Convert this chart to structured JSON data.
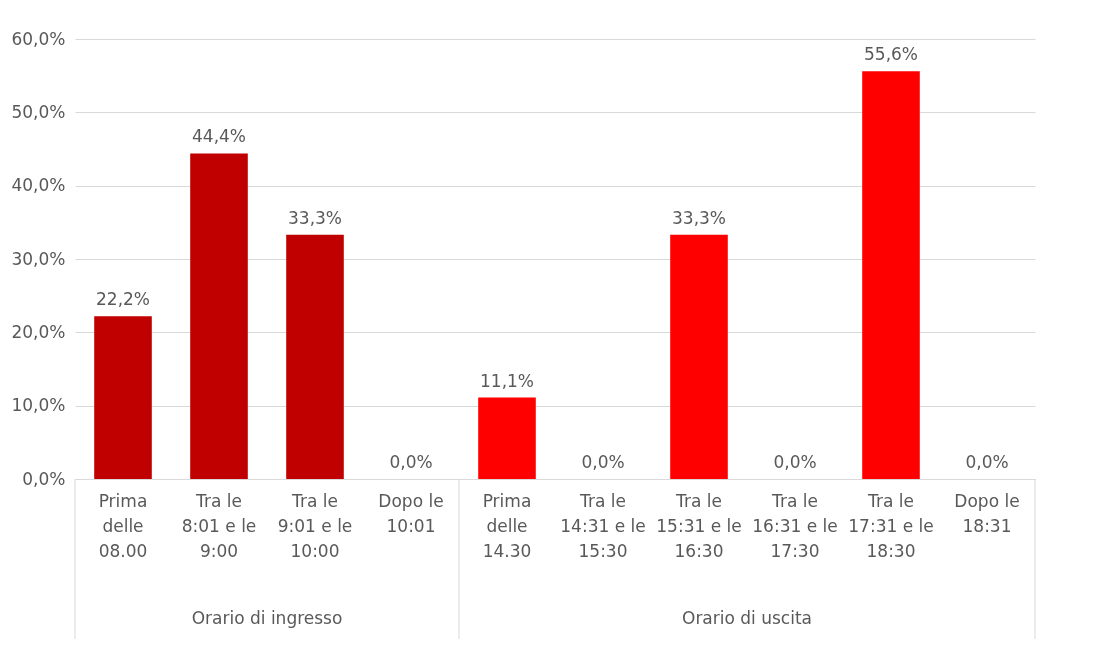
{
  "chart_data": {
    "type": "bar",
    "categories": [
      "Prima\ndelle\n08.00",
      "Tra le\n8:01 e le\n9:00",
      "Tra le\n9:01 e le\n10:00",
      "Dopo le\n10:01",
      "Prima\ndelle\n14.30",
      "Tra le\n14:31 e le\n15:30",
      "Tra le\n15:31 e le\n16:30",
      "Tra le\n16:31 e le\n17:30",
      "Tra le\n17:31 e le\n18:30",
      "Dopo le\n18:31"
    ],
    "values": [
      22.2,
      44.4,
      33.3,
      0,
      11.1,
      0,
      33.3,
      0,
      55.6,
      0
    ],
    "colors": [
      "#c00000",
      "#c00000",
      "#c00000",
      "#c00000",
      "#ff0000",
      "#ff0000",
      "#ff0000",
      "#ff0000",
      "#ff0000",
      "#ff0000"
    ],
    "value_labels": [
      "22,2%",
      "44,4%",
      "33,3%",
      "0,0%",
      "11,1%",
      "0,0%",
      "33,3%",
      "0,0%",
      "55,6%",
      "0,0%"
    ],
    "annotations": [
      "Orario di ingresso",
      "Orario di uscita"
    ],
    "ylim": [
      0,
      60
    ],
    "yticks": [
      {
        "value": 0,
        "label": "0,0%"
      },
      {
        "value": 10,
        "label": "10,0%"
      },
      {
        "value": 20,
        "label": "20,0%"
      },
      {
        "value": 30,
        "label": "30,0%"
      },
      {
        "value": 40,
        "label": "40,0%"
      },
      {
        "value": 50,
        "label": "50,0%"
      },
      {
        "value": 60,
        "label": "60,0%"
      }
    ],
    "grid": "y"
  }
}
